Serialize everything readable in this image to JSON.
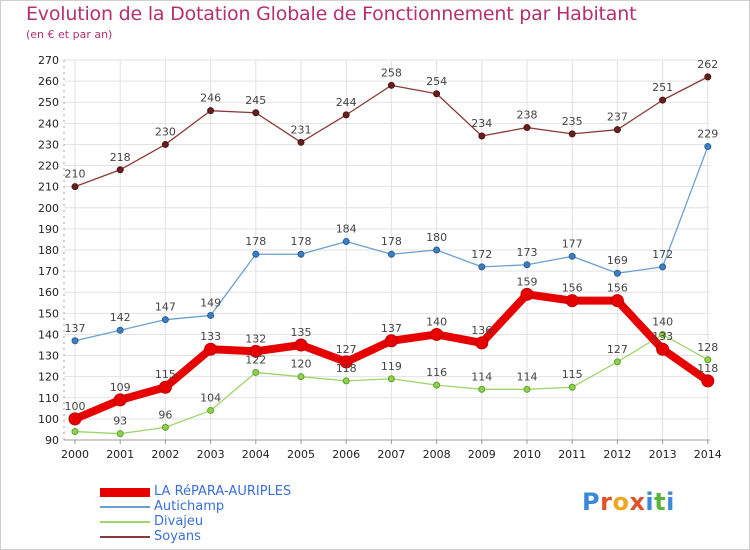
{
  "title": "Evolution de la Dotation Globale de Fonctionnement par Habitant",
  "subtitle": "(en € et par an)",
  "logo": {
    "letters": [
      "P",
      "r",
      "o",
      "x",
      "i",
      "t",
      "i"
    ],
    "colors": [
      "#3a8ad8",
      "#e0522a",
      "#f2a620",
      "#e0522a",
      "#3a8ad8",
      "#5cb33c",
      "#3a8ad8"
    ]
  },
  "chart_data": {
    "type": "line",
    "title": "Evolution de la Dotation Globale de Fonctionnement par Habitant",
    "subtitle": "(en € et par an)",
    "xlabel": "",
    "ylabel": "",
    "x": [
      "2000",
      "2001",
      "2002",
      "2003",
      "2004",
      "2005",
      "2006",
      "2007",
      "2008",
      "2009",
      "2010",
      "2011",
      "2012",
      "2013",
      "2014"
    ],
    "ylim": [
      90,
      270
    ],
    "yticks": [
      90,
      100,
      110,
      120,
      130,
      140,
      150,
      160,
      170,
      180,
      190,
      200,
      210,
      220,
      230,
      240,
      250,
      260,
      270
    ],
    "grid": true,
    "legend_position": "bottom-left",
    "series": [
      {
        "name": "LA RéPARA-AURIPLES",
        "color": "#e60000",
        "values": [
          100,
          109,
          115,
          133,
          132,
          135,
          127,
          137,
          140,
          136,
          159,
          156,
          156,
          133,
          118
        ]
      },
      {
        "name": "Autichamp",
        "color": "#6b9fcf",
        "values": [
          137,
          142,
          147,
          149,
          178,
          178,
          184,
          178,
          180,
          172,
          173,
          177,
          169,
          172,
          229
        ]
      },
      {
        "name": "Divajeu",
        "color": "#9ed56b",
        "values": [
          94,
          93,
          96,
          104,
          122,
          120,
          118,
          119,
          116,
          114,
          114,
          115,
          127,
          140,
          128
        ]
      },
      {
        "name": "Soyans",
        "color": "#8a3a3a",
        "values": [
          210,
          218,
          230,
          246,
          245,
          231,
          244,
          258,
          254,
          234,
          238,
          235,
          237,
          251,
          262
        ]
      }
    ],
    "data_labels": {
      "LA RéPARA-AURIPLES": [
        "100",
        "109",
        "115",
        "133",
        "132",
        "135",
        "127",
        "137",
        "140",
        "136",
        "159",
        "156",
        "156",
        "133",
        "118"
      ],
      "Autichamp": [
        "137",
        "142",
        "147",
        "149",
        "178",
        "178",
        "184",
        "178",
        "180",
        "172",
        "173",
        "177",
        "169",
        "172",
        "229"
      ],
      "Divajeu": [
        "",
        "93",
        "96",
        "104",
        "122",
        "120",
        "118",
        "119",
        "116",
        "114",
        "114",
        "115",
        "127",
        "140",
        "128"
      ],
      "Soyans": [
        "210",
        "218",
        "230",
        "246",
        "245",
        "231",
        "244",
        "258",
        "254",
        "234",
        "238",
        "235",
        "237",
        "251",
        "262"
      ]
    }
  }
}
